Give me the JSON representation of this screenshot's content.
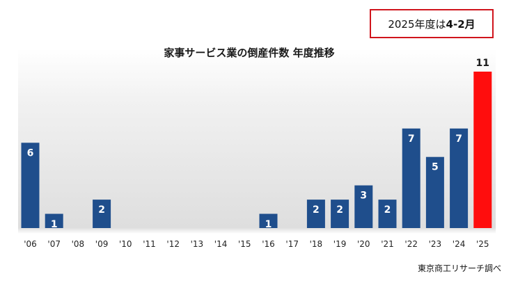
{
  "note": {
    "prefix": "2025年度は",
    "emphasis": "4-2月"
  },
  "source": "東京商工リサーチ調べ",
  "chart_data": {
    "type": "bar",
    "title": "家事サービス業の倒産件数 年度推移",
    "xlabel": "",
    "ylabel": "",
    "ylim": [
      0,
      11
    ],
    "grid": false,
    "categories": [
      "'06",
      "'07",
      "'08",
      "'09",
      "'10",
      "'11",
      "'12",
      "'13",
      "'14",
      "'15",
      "'16",
      "'17",
      "'18",
      "'19",
      "'20",
      "'21",
      "'22",
      "'23",
      "'24",
      "'25"
    ],
    "values": [
      6,
      1,
      0,
      2,
      0,
      0,
      0,
      0,
      0,
      0,
      1,
      0,
      2,
      2,
      3,
      2,
      7,
      5,
      7,
      11
    ],
    "data_labels": [
      "6",
      "1",
      "",
      "2",
      "",
      "",
      "",
      "",
      "",
      "",
      "1",
      "",
      "2",
      "2",
      "3",
      "2",
      "7",
      "5",
      "7",
      "11"
    ],
    "bar_color": "#1f4e8c",
    "highlight_color": "#ff0d0d",
    "highlight_index": 19
  }
}
